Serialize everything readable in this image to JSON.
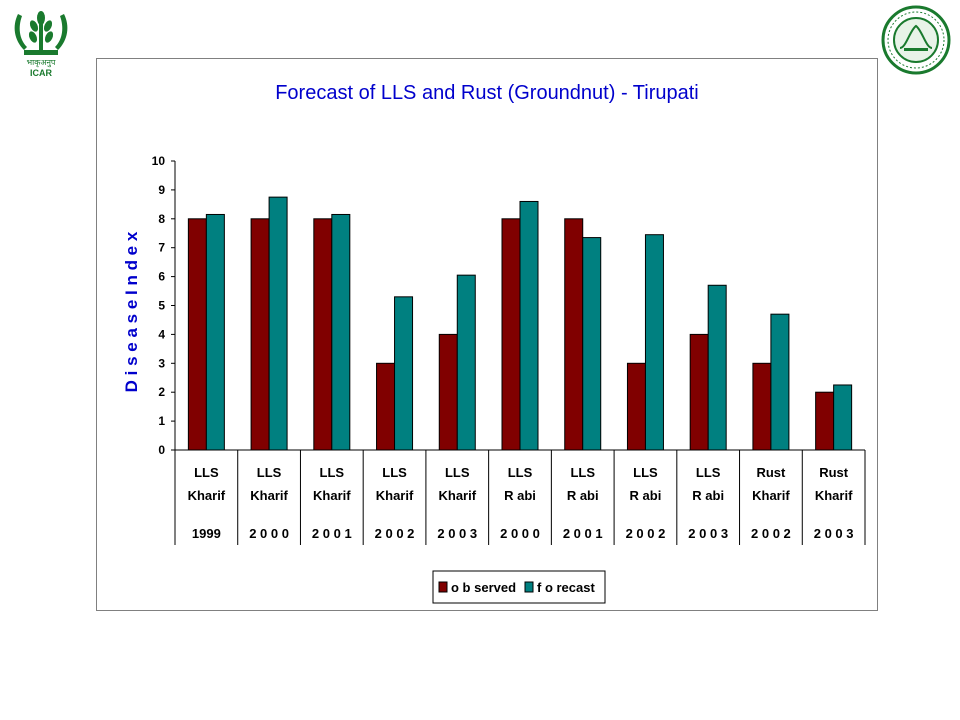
{
  "logos": {
    "left_caption": "ICAR",
    "left_hindi": "भाकृअनुप"
  },
  "chart_data": {
    "type": "bar",
    "title": "Forecast of LLS and Rust  (Groundnut) - Tirupati",
    "ylabel": "D i s e a s e   I n d e x",
    "xlabel": "",
    "ylim": [
      0,
      10
    ],
    "yticks": [
      0,
      1,
      2,
      3,
      4,
      5,
      6,
      7,
      8,
      9,
      10
    ],
    "categories": [
      {
        "disease": "LLS",
        "season": "Kharif",
        "year": "1999"
      },
      {
        "disease": "LLS",
        "season": "Kharif",
        "year": "2 0 0 0"
      },
      {
        "disease": "LLS",
        "season": "Kharif",
        "year": "2 0 0 1"
      },
      {
        "disease": "LLS",
        "season": "Kharif",
        "year": "2 0 0 2"
      },
      {
        "disease": "LLS",
        "season": "Kharif",
        "year": "2 0 0 3"
      },
      {
        "disease": "LLS",
        "season": "R abi",
        "year": "2 0 0 0"
      },
      {
        "disease": "LLS",
        "season": "R abi",
        "year": "2 0 0 1"
      },
      {
        "disease": "LLS",
        "season": "R abi",
        "year": "2 0 0 2"
      },
      {
        "disease": "LLS",
        "season": "R abi",
        "year": "2 0 0 3"
      },
      {
        "disease": "Rust",
        "season": "Kharif",
        "year": "2 0 0 2"
      },
      {
        "disease": "Rust",
        "season": "Kharif",
        "year": "2 0 0 3"
      }
    ],
    "series": [
      {
        "name": "o b served",
        "color": "#800000",
        "values": [
          8,
          8,
          8,
          3,
          4,
          8,
          8,
          3,
          4,
          3,
          2
        ]
      },
      {
        "name": "f o recast",
        "color": "#008080",
        "values": [
          8.15,
          8.75,
          8.15,
          5.3,
          6.05,
          8.6,
          7.35,
          7.45,
          5.7,
          4.7,
          2.25
        ]
      }
    ],
    "legend_position": "bottom-center",
    "grid": false,
    "colors": {
      "title": "#0000cc",
      "axis_label": "#0000cc",
      "frame": "#808080"
    }
  }
}
